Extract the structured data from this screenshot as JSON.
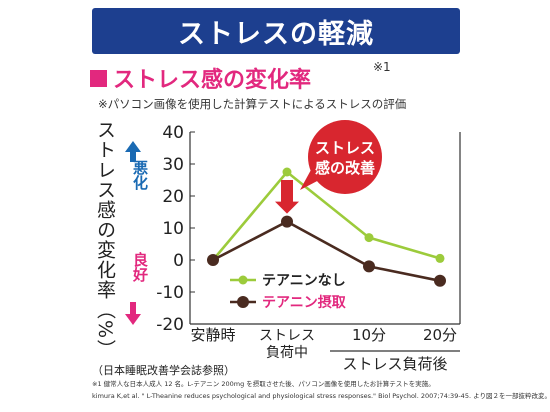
{
  "banner": {
    "title": "ストレスの軽減"
  },
  "subtitle": {
    "text": "ストレス感の変化率",
    "note": "※1"
  },
  "caption": "※パソコン画像を使用した計算テストによるストレスの評価",
  "y_axis": {
    "label": "ストレス感の変化率（%）",
    "up_label": "悪化",
    "down_label": "良好"
  },
  "callout": {
    "line1": "ストレス",
    "line2": "感の改善"
  },
  "x_group_label": "ストレス負荷後",
  "footer": {
    "source": "（日本睡眠改善学会誌参照）",
    "note1": "※1 健常人な日本人成人 12 名。L-テアニン 200mg を摂取させた後、パソコン画像を使用したお計算テストを実施。",
    "note2": "kimura K,et al. \" L-Theanine reduces psychological and physiological stress responses.\" Biol Psychol. 2007;74:39-45. より図２を一部抜粋改変。"
  },
  "colors": {
    "banner": "#1d3f8f",
    "accent_pink": "#e2287e",
    "accent_blue": "#1a6ab3",
    "series_green": "#9ccb3b",
    "series_brown": "#4a2b20",
    "callout_red": "#d8262f"
  },
  "chart_data": {
    "type": "line",
    "categories": [
      "安静時",
      "ストレス\n負荷中",
      "10分",
      "20分"
    ],
    "ylim": [
      -20,
      40
    ],
    "yticks": [
      40,
      30,
      20,
      10,
      0,
      -10,
      -20
    ],
    "series": [
      {
        "name": "テアニンなし",
        "values": [
          0,
          27.5,
          7,
          0.5
        ]
      },
      {
        "name": "テアニン摂取",
        "values": [
          0,
          12,
          -2,
          -6.5
        ]
      }
    ],
    "legend_position": "bottom-right",
    "grid": false
  }
}
